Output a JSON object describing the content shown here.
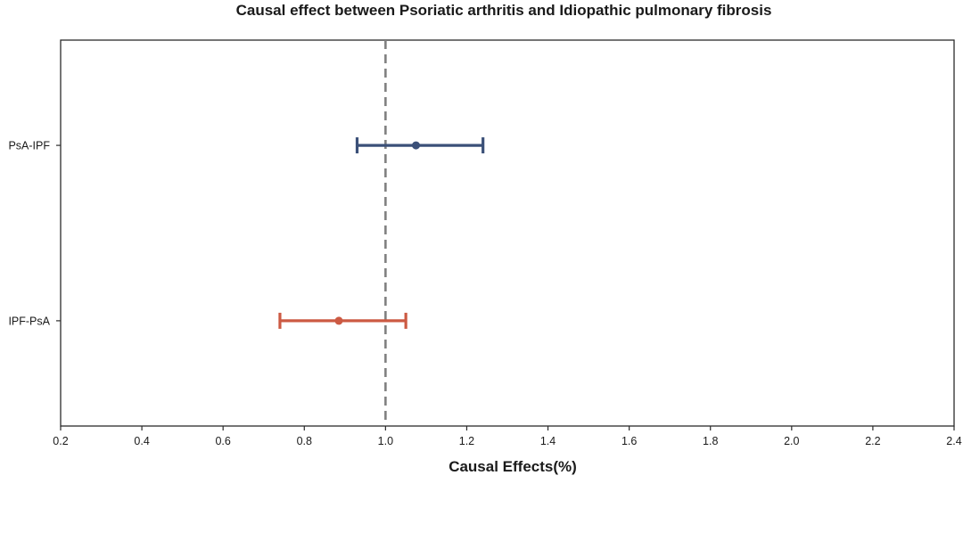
{
  "chart_data": {
    "type": "forest",
    "title": "Causal effect between Psoriatic arthritis and Idiopathic pulmonary fibrosis",
    "xlabel": "Causal Effects(%)",
    "ylabel": "",
    "xlim": [
      0.2,
      2.4
    ],
    "x_ticks": [
      "0.2",
      "0.4",
      "0.6",
      "0.8",
      "1.0",
      "1.2",
      "1.4",
      "1.6",
      "1.8",
      "2.0",
      "2.2",
      "2.4"
    ],
    "reference_line": 1.0,
    "reference_line_color": "#808080",
    "grid": false,
    "legend": "none",
    "series": [
      {
        "category": "PsA-IPF",
        "estimate": 1.075,
        "lower": 0.93,
        "upper": 1.24,
        "color": "#3b5078"
      },
      {
        "category": "IPF-PsA",
        "estimate": 0.885,
        "lower": 0.74,
        "upper": 1.05,
        "color": "#cc5a43"
      }
    ]
  }
}
